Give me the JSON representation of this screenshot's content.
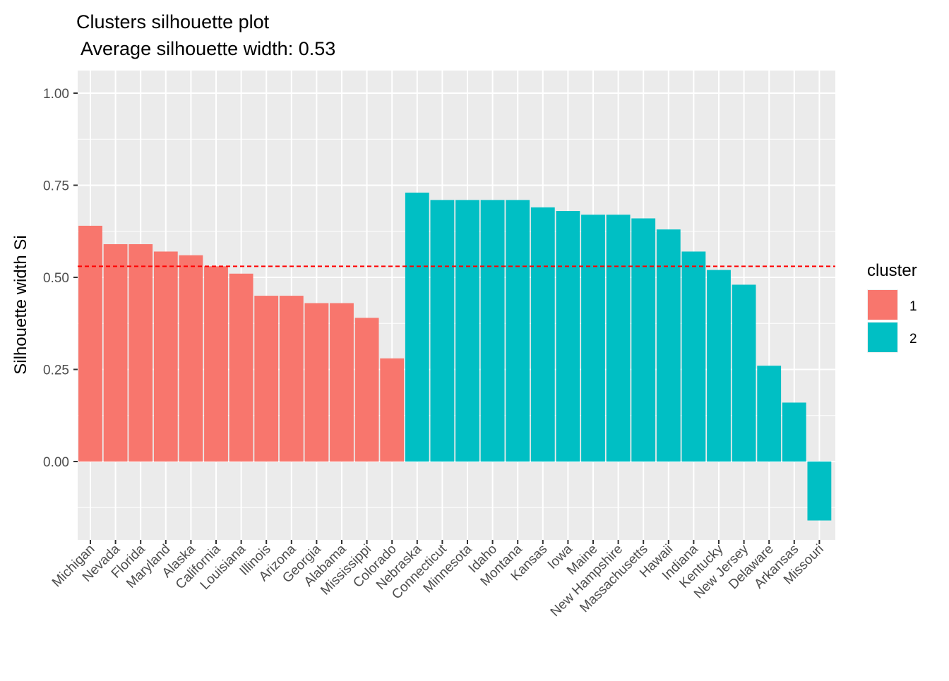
{
  "chart_data": {
    "type": "bar",
    "title": "Clusters silhouette plot",
    "subtitle": " Average silhouette width: 0.53",
    "xlabel": "",
    "ylabel": "Silhouette width Si",
    "ylim": [
      -0.21,
      1.04
    ],
    "y_ticks": [
      {
        "value": 0.0,
        "label": "0.00"
      },
      {
        "value": 0.25,
        "label": "0.25"
      },
      {
        "value": 0.5,
        "label": "0.50"
      },
      {
        "value": 0.75,
        "label": "0.75"
      },
      {
        "value": 1.0,
        "label": "1.00"
      }
    ],
    "reference_line": {
      "value": 0.53,
      "color": "#ff0000",
      "style": "dashed"
    },
    "grid": true,
    "legend": {
      "title": "cluster",
      "position": "right"
    },
    "clusters": [
      {
        "name": "1",
        "color": "#F8766D"
      },
      {
        "name": "2",
        "color": "#00BFC4"
      }
    ],
    "categories": [
      "Michigan",
      "Nevada",
      "Florida",
      "Maryland",
      "Alaska",
      "California",
      "Louisiana",
      "Illinois",
      "Arizona",
      "Georgia",
      "Alabama",
      "Mississippi",
      "Colorado",
      "Nebraska",
      "Connecticut",
      "Minnesota",
      "Idaho",
      "Montana",
      "Kansas",
      "Iowa",
      "Maine",
      "New Hampshire",
      "Massachusetts",
      "Hawaii",
      "Indiana",
      "Kentucky",
      "New Jersey",
      "Delaware",
      "Arkansas",
      "Missouri"
    ],
    "values": [
      0.64,
      0.59,
      0.59,
      0.57,
      0.56,
      0.53,
      0.51,
      0.45,
      0.45,
      0.43,
      0.43,
      0.39,
      0.28,
      0.73,
      0.71,
      0.71,
      0.71,
      0.71,
      0.69,
      0.68,
      0.67,
      0.67,
      0.66,
      0.63,
      0.57,
      0.52,
      0.48,
      0.26,
      0.16,
      -0.16
    ],
    "cluster": [
      "1",
      "1",
      "1",
      "1",
      "1",
      "1",
      "1",
      "1",
      "1",
      "1",
      "1",
      "1",
      "1",
      "2",
      "2",
      "2",
      "2",
      "2",
      "2",
      "2",
      "2",
      "2",
      "2",
      "2",
      "2",
      "2",
      "2",
      "2",
      "2",
      "2"
    ]
  }
}
